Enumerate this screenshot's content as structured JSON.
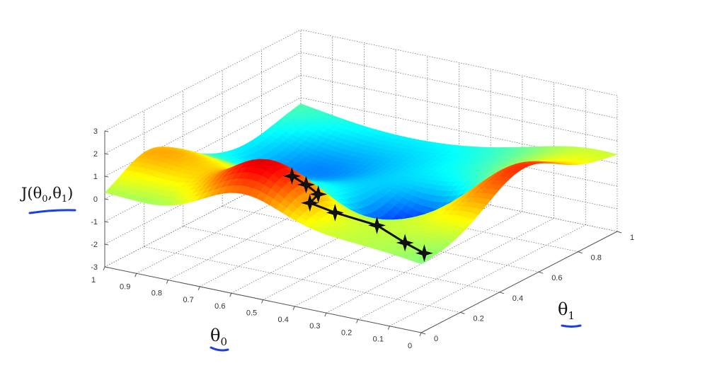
{
  "chart_data": {
    "type": "surface",
    "x_axis": {
      "label": "θ",
      "sub": "0",
      "ticks": [
        "1",
        "0.9",
        "0.8",
        "0.7",
        "0.6",
        "0.5",
        "0.4",
        "0.3",
        "0.2",
        "0.1",
        "0"
      ],
      "range": [
        0,
        1
      ]
    },
    "y_axis": {
      "label": "θ",
      "sub": "1",
      "ticks": [
        "0",
        "0.2",
        "0.4",
        "0.6",
        "0.8",
        "1"
      ],
      "range": [
        0,
        1
      ]
    },
    "z_axis": {
      "label_prefix": "J(θ",
      "label_sub0": "0",
      "label_mid": ",θ",
      "label_sub1": "1",
      "label_suffix": ")",
      "ticks": [
        "3",
        "2",
        "1",
        "0",
        "-1",
        "-2",
        "-3"
      ],
      "range": [
        -3,
        3
      ]
    },
    "descent_path": [
      {
        "theta0": 0.52,
        "theta1": 0.18,
        "J": 1.6
      },
      {
        "theta0": 0.5,
        "theta1": 0.22,
        "J": 1.1
      },
      {
        "theta0": 0.48,
        "theta1": 0.25,
        "J": 0.6
      },
      {
        "theta0": 0.55,
        "theta1": 0.32,
        "J": -0.3
      },
      {
        "theta0": 0.52,
        "theta1": 0.4,
        "J": -1.0
      },
      {
        "theta0": 0.4,
        "theta1": 0.42,
        "J": -1.3
      },
      {
        "theta0": 0.33,
        "theta1": 0.45,
        "J": -2.0
      },
      {
        "theta0": 0.3,
        "theta1": 0.5,
        "J": -2.6
      }
    ],
    "colormap": "jet",
    "grid": true
  }
}
